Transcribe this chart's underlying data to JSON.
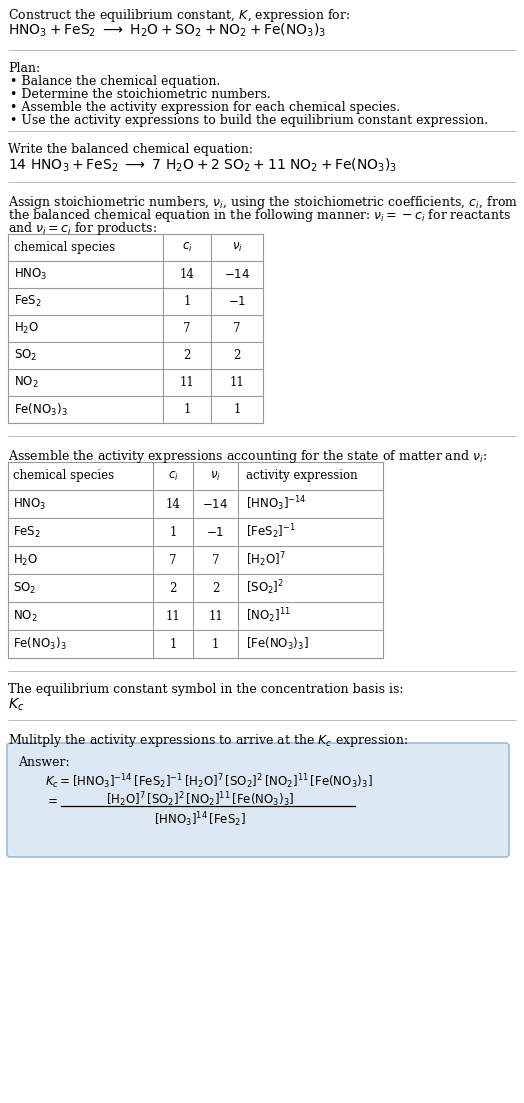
{
  "bg_color": "#ffffff",
  "text_color": "#000000",
  "title_line1": "Construct the equilibrium constant, $K$, expression for:",
  "title_line2_plain": "HNO",
  "plan_header": "Plan:",
  "plan_items": [
    "• Balance the chemical equation.",
    "• Determine the stoichiometric numbers.",
    "• Assemble the activity expression for each chemical species.",
    "• Use the activity expressions to build the equilibrium constant expression."
  ],
  "balanced_header": "Write the balanced chemical equation:",
  "stoich_header1": "Assign stoichiometric numbers, $\\nu_i$, using the stoichiometric coefficients, $c_i$, from",
  "stoich_header2": "the balanced chemical equation in the following manner: $\\nu_i = -c_i$ for reactants",
  "stoich_header3": "and $\\nu_i = c_i$ for products:",
  "table1_col_headers": [
    "chemical species",
    "$c_i$",
    "$\\nu_i$"
  ],
  "table1_rows": [
    [
      "$\\mathrm{HNO_3}$",
      "14",
      "$-14$"
    ],
    [
      "$\\mathrm{FeS_2}$",
      "1",
      "$-1$"
    ],
    [
      "$\\mathrm{H_2O}$",
      "7",
      "7"
    ],
    [
      "$\\mathrm{SO_2}$",
      "2",
      "2"
    ],
    [
      "$\\mathrm{NO_2}$",
      "11",
      "11"
    ],
    [
      "$\\mathrm{Fe(NO_3)_3}$",
      "1",
      "1"
    ]
  ],
  "activity_header": "Assemble the activity expressions accounting for the state of matter and $\\nu_i$:",
  "table2_col_headers": [
    "chemical species",
    "$c_i$",
    "$\\nu_i$",
    "activity expression"
  ],
  "table2_rows": [
    [
      "$\\mathrm{HNO_3}$",
      "14",
      "$-14$",
      "$[\\mathrm{HNO_3}]^{-14}$"
    ],
    [
      "$\\mathrm{FeS_2}$",
      "1",
      "$-1$",
      "$[\\mathrm{FeS_2}]^{-1}$"
    ],
    [
      "$\\mathrm{H_2O}$",
      "7",
      "7",
      "$[\\mathrm{H_2O}]^7$"
    ],
    [
      "$\\mathrm{SO_2}$",
      "2",
      "2",
      "$[\\mathrm{SO_2}]^2$"
    ],
    [
      "$\\mathrm{NO_2}$",
      "11",
      "11",
      "$[\\mathrm{NO_2}]^{11}$"
    ],
    [
      "$\\mathrm{Fe(NO_3)_3}$",
      "1",
      "1",
      "$[\\mathrm{Fe(NO_3)_3}]$"
    ]
  ],
  "kc_header": "The equilibrium constant symbol in the concentration basis is:",
  "kc_symbol": "$K_c$",
  "multiply_header": "Mulitply the activity expressions to arrive at the $K_c$ expression:",
  "answer_label": "Answer:",
  "answer_line1": "$K_c = [\\mathrm{HNO_3}]^{-14}\\,[\\mathrm{FeS_2}]^{-1}\\,[\\mathrm{H_2O}]^7\\,[\\mathrm{SO_2}]^2\\,[\\mathrm{NO_2}]^{11}\\,[\\mathrm{Fe(NO_3)_3}]$",
  "answer_eq_sign": "$=$",
  "answer_num": "$[\\mathrm{H_2O}]^7\\,[\\mathrm{SO_2}]^2\\,[\\mathrm{NO_2}]^{11}\\,[\\mathrm{Fe(NO_3)_3}]$",
  "answer_den": "$[\\mathrm{HNO_3}]^{14}\\,[\\mathrm{FeS_2}]$",
  "answer_box_facecolor": "#dce9f5",
  "answer_box_edgecolor": "#8ab4d0",
  "table_line_color": "#999999",
  "sep_line_color": "#bbbbbb",
  "fs_base": 9.0,
  "fs_small": 8.5,
  "lmargin": 8,
  "rmargin": 516
}
